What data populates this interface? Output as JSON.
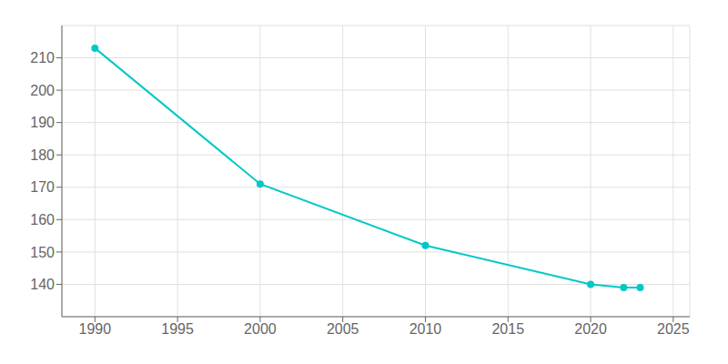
{
  "chart_data": {
    "type": "line",
    "x": [
      1990,
      2000,
      2010,
      2020,
      2022,
      2023
    ],
    "values": [
      213,
      171,
      152,
      140,
      139,
      139
    ],
    "color": "#00c8c8",
    "marker": "circle",
    "xlim": [
      1988,
      2026
    ],
    "ylim": [
      130,
      220
    ],
    "xticks": [
      1990,
      1995,
      2000,
      2005,
      2010,
      2015,
      2020,
      2025
    ],
    "yticks": [
      140,
      150,
      160,
      170,
      180,
      190,
      200,
      210
    ],
    "grid": true
  }
}
